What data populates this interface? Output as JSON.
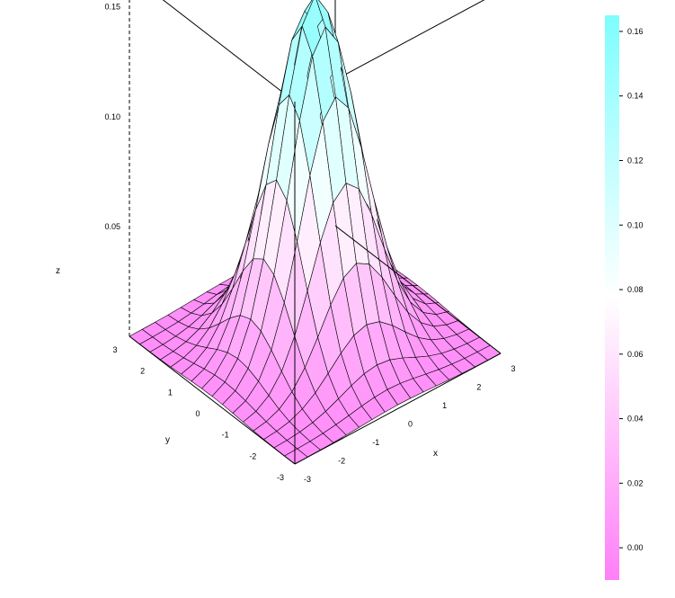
{
  "chart_data": {
    "type": "surface",
    "title": "",
    "function": "bivariate normal density, sigma = 1",
    "xlabel": "x",
    "ylabel": "y",
    "zlabel": "z",
    "xlim": [
      -3,
      3
    ],
    "ylim": [
      -3,
      3
    ],
    "zlim": [
      0,
      0.16
    ],
    "grid_steps": 16,
    "peak": {
      "x": 0,
      "y": 0,
      "z": 0.159
    },
    "x_ticks": [
      "-3",
      "-2",
      "-1",
      "0",
      "1",
      "2",
      "3"
    ],
    "y_ticks": [
      "-3",
      "-2",
      "-1",
      "0",
      "1",
      "2",
      "3"
    ],
    "z_ticks": [
      "0.05",
      "0.10",
      "0.15"
    ],
    "colorbar": {
      "range": [
        -0.01,
        0.165
      ],
      "ticks": [
        "0.00",
        "0.02",
        "0.04",
        "0.06",
        "0.08",
        "0.10",
        "0.12",
        "0.14",
        "0.16"
      ],
      "colors": {
        "low": "#ff7ff8",
        "mid": "#ffffff",
        "high": "#7ffdfd"
      }
    },
    "colors": {
      "low": "#ff7ff8",
      "mid": "#ffffff",
      "high": "#7ffdfd"
    }
  }
}
